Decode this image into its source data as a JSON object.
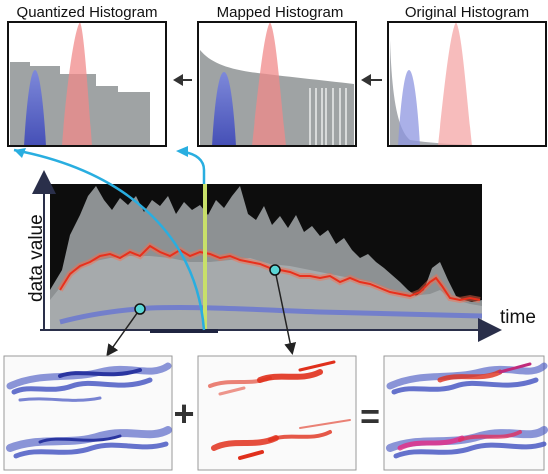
{
  "panels": {
    "quantized": {
      "title": "Quantized Histogram"
    },
    "mapped": {
      "title": "Mapped Histogram"
    },
    "original": {
      "title": "Original Histogram"
    }
  },
  "timeline": {
    "ylabel": "data value",
    "xlabel": "time"
  },
  "operators": {
    "plus": "+",
    "equals": "="
  },
  "colors": {
    "blue_series": "#6670c8",
    "red_series": "#e03a2a",
    "highlight_line": "#c8e06a",
    "cyan_arrow": "#29aee0",
    "gray_hist": "#9fa3a4"
  }
}
